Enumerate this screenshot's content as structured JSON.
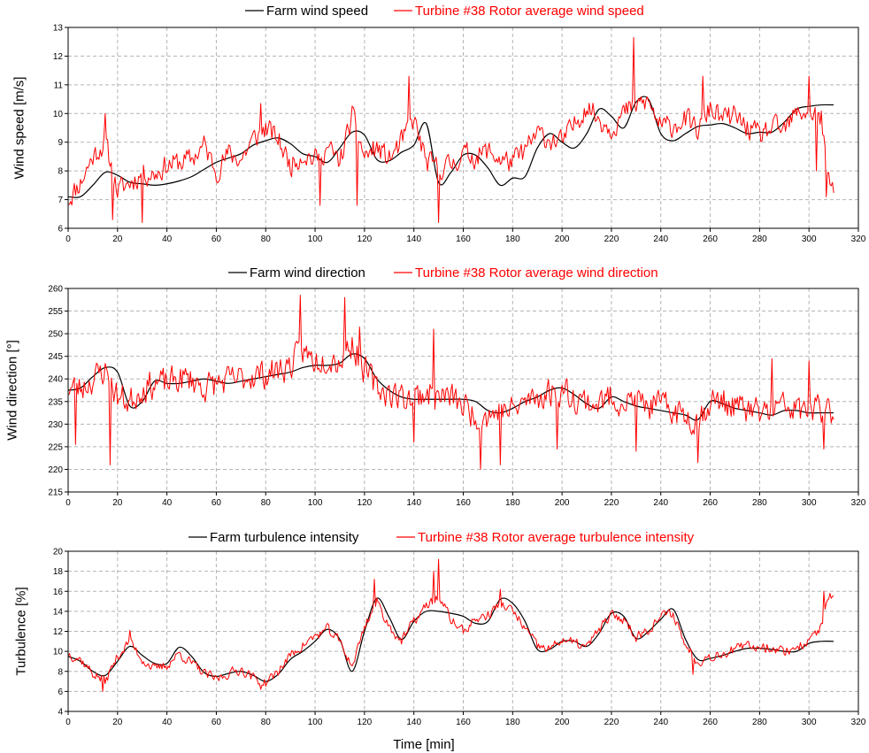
{
  "figure": {
    "xlabel": "Time [min]"
  },
  "chart_data": [
    {
      "type": "line",
      "ylabel": "Wind speed [m/s]",
      "xlim": [
        0,
        320
      ],
      "ylim": [
        6,
        13
      ],
      "xticks": [
        0,
        20,
        40,
        60,
        80,
        100,
        120,
        140,
        160,
        180,
        200,
        220,
        240,
        260,
        280,
        300,
        320
      ],
      "yticks": [
        6,
        7,
        8,
        9,
        10,
        11,
        12,
        13
      ],
      "grid": true,
      "legend": "top-center",
      "series": [
        {
          "name": "Farm wind speed",
          "color": "#000000",
          "smooth": true,
          "x": [
            0,
            5,
            10,
            15,
            20,
            25,
            30,
            35,
            40,
            45,
            50,
            55,
            60,
            65,
            70,
            75,
            80,
            85,
            90,
            95,
            100,
            105,
            110,
            115,
            120,
            125,
            130,
            135,
            140,
            145,
            150,
            155,
            160,
            165,
            170,
            175,
            180,
            185,
            190,
            195,
            200,
            205,
            210,
            215,
            220,
            225,
            230,
            235,
            240,
            245,
            250,
            255,
            260,
            265,
            270,
            275,
            280,
            285,
            290,
            295,
            300,
            305,
            310
          ],
          "values": [
            7.1,
            7.1,
            7.5,
            7.95,
            7.85,
            7.6,
            7.55,
            7.5,
            7.55,
            7.65,
            7.8,
            8.05,
            8.3,
            8.45,
            8.6,
            8.9,
            9.05,
            9.15,
            8.95,
            8.6,
            8.5,
            8.3,
            8.8,
            9.35,
            9.25,
            8.4,
            8.35,
            8.65,
            8.9,
            9.65,
            7.6,
            7.95,
            8.55,
            8.55,
            8.1,
            7.5,
            7.75,
            7.8,
            8.8,
            9.3,
            9.0,
            8.8,
            9.3,
            10.15,
            9.9,
            9.5,
            10.4,
            10.5,
            9.3,
            9.05,
            9.3,
            9.55,
            9.6,
            9.65,
            9.5,
            9.3,
            9.35,
            9.35,
            9.7,
            10.15,
            10.25,
            10.3,
            10.3
          ]
        },
        {
          "name": "Turbine #38 Rotor average wind speed",
          "color": "#ff0000",
          "smooth": false,
          "noise": {
            "seed": 11,
            "amplitude": 0.55,
            "step": 0.5
          },
          "spikes": [
            [
              15,
              10.0
            ],
            [
              18,
              6.3
            ],
            [
              30,
              6.2
            ],
            [
              78,
              10.35
            ],
            [
              102,
              6.8
            ],
            [
              117,
              6.8
            ],
            [
              138,
              11.3
            ],
            [
              150,
              6.2
            ],
            [
              229,
              12.65
            ],
            [
              257,
              11.3
            ],
            [
              300,
              11.3
            ],
            [
              303,
              8.0
            ],
            [
              307,
              7.1
            ]
          ],
          "x": [
            0,
            5,
            10,
            15,
            20,
            25,
            30,
            35,
            40,
            45,
            50,
            55,
            60,
            65,
            70,
            75,
            80,
            85,
            90,
            95,
            100,
            105,
            110,
            115,
            120,
            125,
            130,
            135,
            140,
            145,
            150,
            155,
            160,
            165,
            170,
            175,
            180,
            185,
            190,
            195,
            200,
            205,
            210,
            215,
            220,
            225,
            230,
            235,
            240,
            245,
            250,
            255,
            260,
            265,
            270,
            275,
            280,
            285,
            290,
            295,
            300,
            305,
            308,
            310
          ],
          "values": [
            7.0,
            7.6,
            8.5,
            9.0,
            7.3,
            7.6,
            7.9,
            7.9,
            8.2,
            8.3,
            8.4,
            8.9,
            8.0,
            8.6,
            8.4,
            9.1,
            9.5,
            9.1,
            8.2,
            8.6,
            8.4,
            8.8,
            8.3,
            9.9,
            8.5,
            8.8,
            8.4,
            9.0,
            9.8,
            8.3,
            8.1,
            8.2,
            8.6,
            8.5,
            8.7,
            8.4,
            8.3,
            8.7,
            9.3,
            9.1,
            9.0,
            9.6,
            10.3,
            9.8,
            9.5,
            10.0,
            10.3,
            10.4,
            9.5,
            9.6,
            9.8,
            9.4,
            10.2,
            9.8,
            9.9,
            9.5,
            9.2,
            9.5,
            9.4,
            10.0,
            10.1,
            9.8,
            7.6,
            7.4
          ]
        }
      ]
    },
    {
      "type": "line",
      "ylabel": "Wind direction [°]",
      "xlim": [
        0,
        320
      ],
      "ylim": [
        215,
        260
      ],
      "xticks": [
        0,
        20,
        40,
        60,
        80,
        100,
        120,
        140,
        160,
        180,
        200,
        220,
        240,
        260,
        280,
        300,
        320
      ],
      "yticks": [
        215,
        220,
        225,
        230,
        235,
        240,
        245,
        250,
        255,
        260
      ],
      "grid": true,
      "legend": "top-center",
      "series": [
        {
          "name": "Farm wind direction",
          "color": "#000000",
          "smooth": true,
          "x": [
            0,
            5,
            10,
            15,
            20,
            25,
            30,
            35,
            40,
            45,
            50,
            55,
            60,
            65,
            70,
            75,
            80,
            85,
            90,
            95,
            100,
            105,
            110,
            115,
            120,
            125,
            130,
            135,
            140,
            145,
            150,
            155,
            160,
            165,
            170,
            175,
            180,
            185,
            190,
            195,
            200,
            205,
            210,
            215,
            220,
            225,
            230,
            235,
            240,
            245,
            250,
            255,
            260,
            265,
            270,
            275,
            280,
            285,
            290,
            295,
            300,
            305,
            310
          ],
          "values": [
            237.5,
            238.0,
            240.5,
            242.5,
            241.5,
            234.0,
            235.0,
            239.5,
            239.0,
            239.0,
            239.5,
            240.0,
            239.5,
            239.0,
            239.5,
            240.0,
            240.5,
            241.0,
            241.5,
            242.5,
            243.0,
            243.0,
            243.5,
            245.5,
            244.5,
            240.0,
            237.5,
            236.0,
            235.5,
            235.5,
            235.5,
            235.5,
            235.5,
            235.0,
            233.0,
            232.5,
            233.5,
            235.0,
            236.0,
            237.5,
            238.0,
            236.5,
            234.5,
            233.5,
            236.0,
            235.0,
            234.0,
            233.5,
            233.0,
            232.5,
            232.0,
            231.0,
            235.0,
            234.5,
            233.5,
            233.0,
            232.5,
            232.0,
            233.0,
            233.0,
            232.5,
            232.5,
            232.5
          ]
        },
        {
          "name": "Turbine #38 Rotor average wind direction",
          "color": "#ff0000",
          "smooth": false,
          "noise": {
            "seed": 23,
            "amplitude": 4.5,
            "step": 0.5
          },
          "spikes": [
            [
              3,
              225.5
            ],
            [
              17,
              221.0
            ],
            [
              94,
              258.5
            ],
            [
              112,
              258.0
            ],
            [
              118,
              251.5
            ],
            [
              140,
              226.0
            ],
            [
              148,
              251.0
            ],
            [
              167,
              220.0
            ],
            [
              175,
              221.0
            ],
            [
              198,
              224.5
            ],
            [
              230,
              224.0
            ],
            [
              255,
              221.5
            ],
            [
              285,
              244.5
            ],
            [
              300,
              244.0
            ],
            [
              306,
              224.5
            ]
          ],
          "x": [
            0,
            5,
            10,
            15,
            20,
            25,
            30,
            35,
            40,
            45,
            50,
            55,
            60,
            65,
            70,
            75,
            80,
            85,
            90,
            95,
            100,
            105,
            110,
            115,
            120,
            125,
            130,
            135,
            140,
            145,
            150,
            155,
            160,
            165,
            170,
            175,
            180,
            185,
            190,
            195,
            200,
            205,
            210,
            215,
            220,
            225,
            230,
            235,
            240,
            245,
            250,
            255,
            260,
            265,
            270,
            275,
            280,
            285,
            290,
            295,
            300,
            305,
            310
          ],
          "values": [
            238.0,
            238.0,
            240.0,
            242.0,
            236.0,
            235.0,
            238.0,
            239.0,
            239.0,
            240.0,
            240.0,
            238.0,
            239.0,
            239.5,
            240.0,
            241.0,
            241.0,
            242.0,
            243.0,
            246.0,
            244.0,
            245.0,
            244.0,
            248.0,
            242.0,
            238.0,
            237.0,
            236.0,
            236.0,
            237.0,
            236.0,
            236.0,
            234.0,
            232.0,
            232.0,
            233.0,
            233.0,
            235.0,
            236.0,
            237.0,
            237.5,
            236.0,
            235.0,
            234.5,
            236.0,
            235.0,
            235.0,
            234.0,
            234.0,
            233.0,
            232.0,
            231.0,
            235.0,
            235.0,
            234.0,
            233.0,
            232.5,
            233.0,
            234.0,
            233.0,
            233.0,
            233.0,
            233.0
          ]
        }
      ]
    },
    {
      "type": "line",
      "ylabel": "Turbulence [%]",
      "xlim": [
        0,
        320
      ],
      "ylim": [
        4,
        20
      ],
      "xticks": [
        0,
        20,
        40,
        60,
        80,
        100,
        120,
        140,
        160,
        180,
        200,
        220,
        240,
        260,
        280,
        300,
        320
      ],
      "yticks": [
        4,
        6,
        8,
        10,
        12,
        14,
        16,
        18,
        20
      ],
      "grid": true,
      "legend": "top-center",
      "series": [
        {
          "name": "Farm turbulence intensity",
          "color": "#000000",
          "smooth": true,
          "x": [
            0,
            5,
            10,
            15,
            20,
            25,
            30,
            35,
            40,
            45,
            50,
            55,
            60,
            65,
            70,
            75,
            80,
            85,
            90,
            95,
            100,
            105,
            110,
            115,
            120,
            125,
            130,
            135,
            140,
            145,
            150,
            155,
            160,
            165,
            170,
            175,
            180,
            185,
            190,
            195,
            200,
            205,
            210,
            215,
            220,
            225,
            230,
            235,
            240,
            245,
            250,
            255,
            260,
            265,
            270,
            275,
            280,
            285,
            290,
            295,
            300,
            305,
            310
          ],
          "values": [
            9.5,
            9.0,
            8.0,
            7.6,
            9.0,
            10.5,
            9.6,
            8.8,
            8.8,
            10.4,
            9.5,
            7.9,
            7.5,
            7.8,
            8.0,
            7.6,
            7.0,
            7.7,
            9.2,
            10.0,
            11.0,
            12.2,
            11.2,
            8.0,
            12.0,
            15.3,
            13.4,
            11.2,
            13.0,
            14.0,
            14.0,
            13.8,
            13.5,
            12.8,
            13.0,
            15.2,
            14.8,
            13.0,
            10.2,
            10.2,
            11.0,
            11.0,
            10.5,
            11.8,
            13.8,
            13.5,
            11.3,
            12.0,
            13.2,
            14.2,
            11.2,
            9.2,
            9.3,
            9.6,
            10.0,
            10.3,
            10.3,
            10.2,
            10.0,
            10.0,
            10.8,
            11.0,
            11.0
          ]
        },
        {
          "name": "Turbine #38 Rotor average turbulence intensity",
          "color": "#ff0000",
          "smooth": false,
          "noise": {
            "seed": 37,
            "amplitude": 0.7,
            "step": 0.5
          },
          "spikes": [
            [
              14,
              6.0
            ],
            [
              25,
              12.1
            ],
            [
              78,
              6.2
            ],
            [
              124,
              17.2
            ],
            [
              148,
              18.0
            ],
            [
              150,
              19.2
            ],
            [
              152,
              14.5
            ],
            [
              175,
              16.2
            ],
            [
              253,
              7.7
            ],
            [
              306,
              16.0
            ]
          ],
          "x": [
            0,
            5,
            10,
            15,
            20,
            25,
            30,
            35,
            40,
            45,
            50,
            55,
            60,
            65,
            70,
            75,
            80,
            85,
            90,
            95,
            100,
            105,
            110,
            115,
            120,
            125,
            130,
            135,
            140,
            145,
            150,
            155,
            160,
            165,
            170,
            175,
            180,
            185,
            190,
            195,
            200,
            205,
            210,
            215,
            220,
            225,
            230,
            235,
            240,
            245,
            250,
            255,
            260,
            265,
            270,
            275,
            280,
            285,
            290,
            295,
            300,
            305,
            308,
            310
          ],
          "values": [
            9.8,
            9.2,
            7.8,
            7.0,
            9.5,
            11.0,
            9.2,
            8.2,
            8.6,
            9.8,
            8.8,
            7.8,
            7.2,
            7.8,
            8.2,
            7.4,
            6.8,
            8.0,
            9.6,
            10.6,
            11.5,
            12.2,
            11.0,
            8.5,
            12.5,
            15.0,
            12.5,
            11.0,
            13.0,
            14.5,
            15.5,
            13.2,
            12.0,
            13.2,
            13.6,
            14.8,
            14.0,
            12.3,
            10.5,
            10.2,
            11.2,
            10.8,
            10.4,
            12.2,
            13.6,
            13.2,
            11.5,
            12.2,
            13.5,
            13.8,
            10.6,
            9.0,
            9.5,
            9.8,
            10.2,
            10.5,
            10.5,
            10.4,
            10.0,
            10.4,
            11.0,
            12.5,
            15.5,
            15.2
          ]
        }
      ]
    }
  ]
}
